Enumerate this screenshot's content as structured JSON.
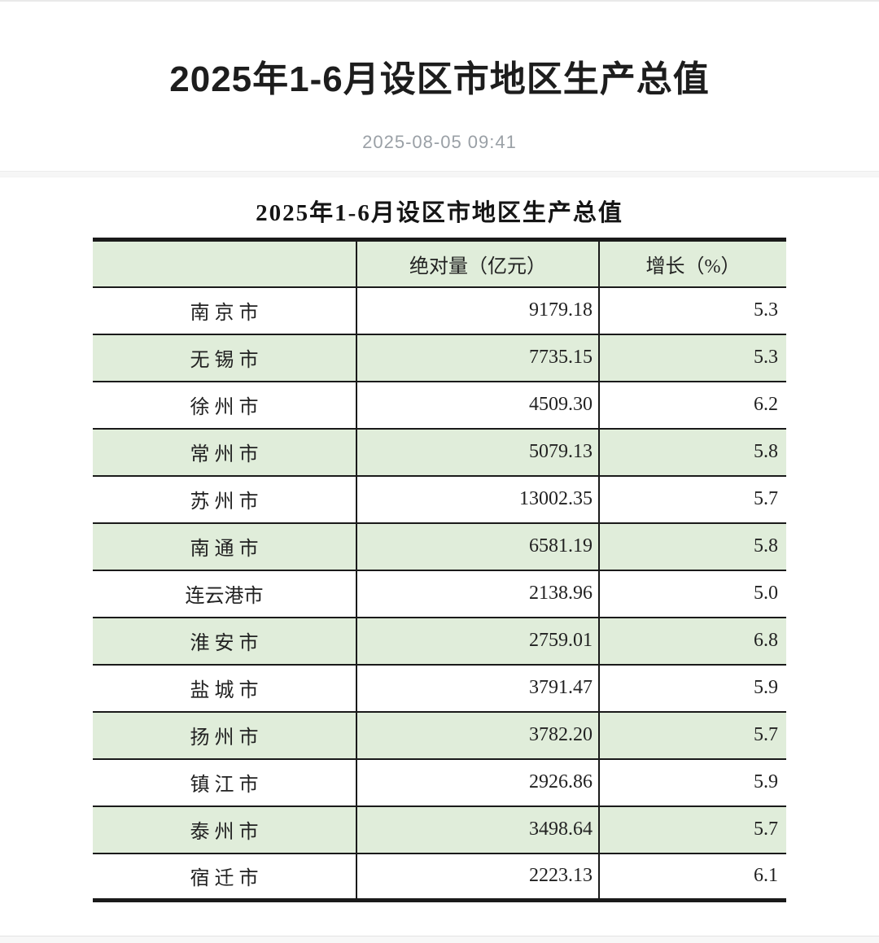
{
  "article": {
    "title": "2025年1-6月设区市地区生产总值",
    "published_at": "2025-08-05 09:41"
  },
  "table": {
    "title": "2025年1-6月设区市地区生产总值",
    "headers": [
      "",
      "绝对量（亿元）",
      "增长（%）"
    ],
    "rows": [
      {
        "city": "南 京 市",
        "absolute": "9179.18",
        "growth": "5.3"
      },
      {
        "city": "无 锡 市",
        "absolute": "7735.15",
        "growth": "5.3"
      },
      {
        "city": "徐 州 市",
        "absolute": "4509.30",
        "growth": "6.2"
      },
      {
        "city": "常 州 市",
        "absolute": "5079.13",
        "growth": "5.8"
      },
      {
        "city": "苏 州 市",
        "absolute": "13002.35",
        "growth": "5.7"
      },
      {
        "city": "南 通 市",
        "absolute": "6581.19",
        "growth": "5.8"
      },
      {
        "city": "连云港市",
        "absolute": "2138.96",
        "growth": "5.0"
      },
      {
        "city": "淮 安 市",
        "absolute": "2759.01",
        "growth": "6.8"
      },
      {
        "city": "盐 城 市",
        "absolute": "3791.47",
        "growth": "5.9"
      },
      {
        "city": "扬 州 市",
        "absolute": "3782.20",
        "growth": "5.7"
      },
      {
        "city": "镇 江 市",
        "absolute": "2926.86",
        "growth": "5.9"
      },
      {
        "city": "泰 州 市",
        "absolute": "3498.64",
        "growth": "5.7"
      },
      {
        "city": "宿 迁 市",
        "absolute": "2223.13",
        "growth": "6.1"
      }
    ]
  },
  "colors": {
    "row_highlight": "#e0edda",
    "table_border": "#1a1a1a",
    "date_text": "#9aa0a6"
  }
}
